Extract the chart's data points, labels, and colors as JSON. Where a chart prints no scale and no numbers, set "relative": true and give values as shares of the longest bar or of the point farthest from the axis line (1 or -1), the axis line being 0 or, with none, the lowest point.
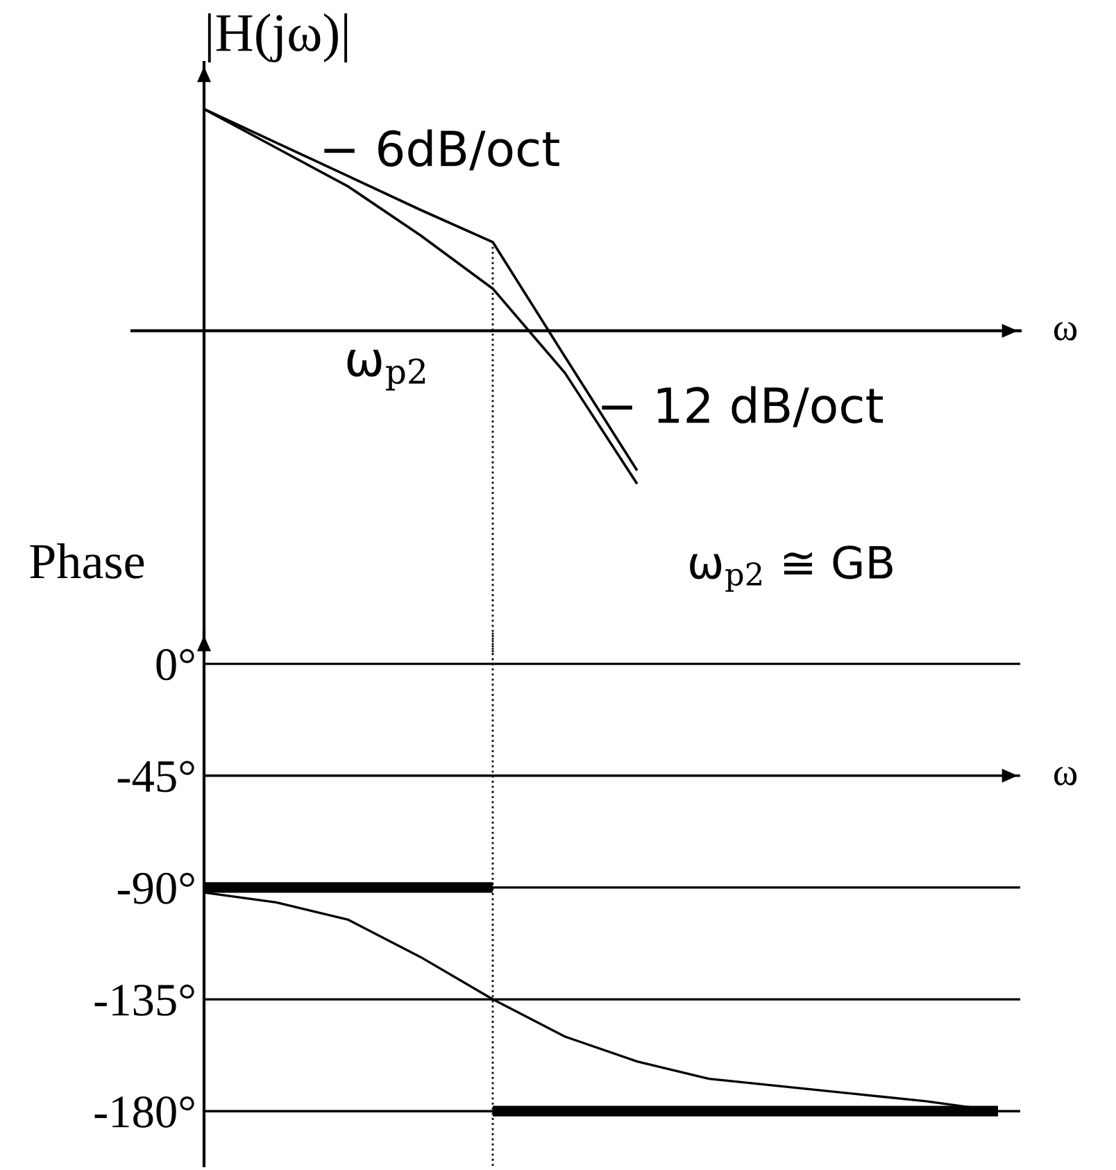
{
  "chart_data": [
    {
      "type": "line",
      "ylabel": "|H(jω)|",
      "xlabel": "ω",
      "relative": true,
      "categories": [
        null,
        null,
        null,
        null,
        null,
        null,
        null,
        null,
        null,
        null,
        null,
        null
      ],
      "series": [
        {
          "color": "#000000",
          "values": [
            1,
            0.848,
            0.697,
            0.545,
            0.4,
            -0.117,
            -0.63,
            null,
            null,
            null,
            null,
            null
          ]
        },
        {
          "color": "#000000",
          "values": [
            1,
            0.825,
            0.65,
            0.43,
            0.19,
            -0.19,
            -0.69,
            null,
            null,
            null,
            null,
            null
          ]
        }
      ],
      "annotations": [
        "− 6dB/oct",
        "− 12 dB/oct",
        "ω$_{p2}$"
      ],
      "grid": false,
      "legend": false,
      "marker": "none",
      "line_style": "solid"
    },
    {
      "type": "line",
      "ylabel": "Phase",
      "xlabel": "ω",
      "categories": [
        null,
        null,
        null,
        null,
        null,
        null,
        null,
        null,
        null,
        null,
        null,
        null
      ],
      "series": [
        {
          "color": "#000000",
          "values": [
            -90,
            -90,
            -90,
            -90,
            -90,
            null,
            null,
            null,
            null,
            null,
            null,
            null
          ]
        },
        {
          "color": "#000000",
          "values": [
            null,
            null,
            null,
            null,
            -180,
            -180,
            -180,
            -180,
            -180,
            -180,
            -180,
            -180
          ]
        },
        {
          "color": "#000000",
          "values": [
            -92,
            -96,
            -103,
            -118,
            -135,
            -150,
            -160,
            -167,
            -170,
            -173,
            -176,
            -180
          ]
        }
      ],
      "ylim": [
        -202,
        13
      ],
      "yticks": [
        {
          "value": 0,
          "label": "0°"
        },
        {
          "value": -45,
          "label": "-45°"
        },
        {
          "value": -90,
          "label": "-90°"
        },
        {
          "value": -135,
          "label": "-135°"
        },
        {
          "value": -180,
          "label": "-180°"
        }
      ],
      "ref_lines": [
        {
          "axis": "y",
          "value": -45,
          "color": "#000000"
        }
      ],
      "annotations": [
        "ω$_{p2}$ ≅ GB"
      ],
      "grid": "y",
      "legend": false,
      "marker": "none",
      "line_style": "solid"
    }
  ]
}
